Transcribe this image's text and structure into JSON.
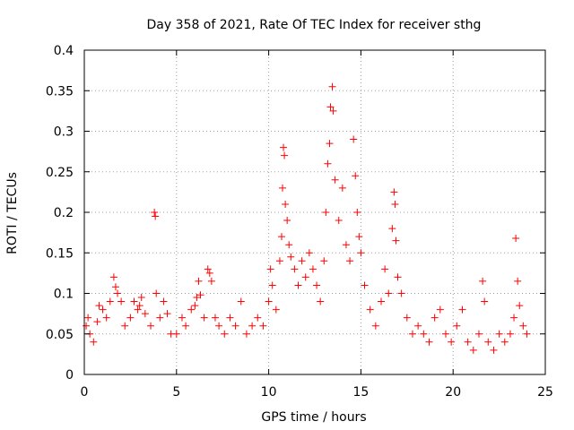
{
  "chart_data": {
    "type": "scatter",
    "title": "Day 358 of 2021, Rate Of TEC Index for receiver sthg",
    "xlabel": "GPS time / hours",
    "ylabel": "ROTI / TECUs",
    "xlim": [
      0,
      25
    ],
    "ylim": [
      0,
      0.4
    ],
    "xticks": [
      0,
      5,
      10,
      15,
      20,
      25
    ],
    "yticks": [
      0,
      0.05,
      0.1,
      0.15,
      0.2,
      0.25,
      0.3,
      0.35,
      0.4
    ],
    "xtick_labels": [
      "0",
      "5",
      "10",
      "15",
      "20",
      "25"
    ],
    "ytick_labels": [
      "0",
      "0.05",
      "0.1",
      "0.15",
      "0.2",
      "0.25",
      "0.3",
      "0.35",
      "0.4"
    ],
    "grid": true,
    "marker": "+",
    "color": "#ff0000",
    "series": [
      {
        "name": "ROTI",
        "points": [
          [
            0.1,
            0.06
          ],
          [
            0.2,
            0.07
          ],
          [
            0.3,
            0.05
          ],
          [
            0.5,
            0.04
          ],
          [
            0.7,
            0.065
          ],
          [
            0.8,
            0.085
          ],
          [
            1.0,
            0.08
          ],
          [
            1.2,
            0.07
          ],
          [
            1.4,
            0.09
          ],
          [
            1.6,
            0.12
          ],
          [
            1.7,
            0.108
          ],
          [
            1.8,
            0.1
          ],
          [
            2.0,
            0.09
          ],
          [
            2.2,
            0.06
          ],
          [
            2.5,
            0.07
          ],
          [
            2.7,
            0.09
          ],
          [
            2.9,
            0.08
          ],
          [
            3.0,
            0.085
          ],
          [
            3.1,
            0.095
          ],
          [
            3.3,
            0.075
          ],
          [
            3.6,
            0.06
          ],
          [
            3.8,
            0.2
          ],
          [
            3.85,
            0.195
          ],
          [
            3.9,
            0.1
          ],
          [
            4.1,
            0.07
          ],
          [
            4.3,
            0.09
          ],
          [
            4.5,
            0.075
          ],
          [
            4.7,
            0.05
          ],
          [
            5.0,
            0.05
          ],
          [
            5.3,
            0.07
          ],
          [
            5.5,
            0.06
          ],
          [
            5.8,
            0.08
          ],
          [
            6.0,
            0.085
          ],
          [
            6.1,
            0.095
          ],
          [
            6.2,
            0.115
          ],
          [
            6.3,
            0.098
          ],
          [
            6.5,
            0.07
          ],
          [
            6.7,
            0.13
          ],
          [
            6.8,
            0.125
          ],
          [
            6.9,
            0.115
          ],
          [
            7.1,
            0.07
          ],
          [
            7.3,
            0.06
          ],
          [
            7.6,
            0.05
          ],
          [
            7.9,
            0.07
          ],
          [
            8.2,
            0.06
          ],
          [
            8.5,
            0.09
          ],
          [
            8.8,
            0.05
          ],
          [
            9.1,
            0.06
          ],
          [
            9.4,
            0.07
          ],
          [
            9.7,
            0.06
          ],
          [
            10.0,
            0.09
          ],
          [
            10.1,
            0.13
          ],
          [
            10.2,
            0.11
          ],
          [
            10.4,
            0.08
          ],
          [
            10.6,
            0.14
          ],
          [
            10.7,
            0.17
          ],
          [
            10.75,
            0.23
          ],
          [
            10.8,
            0.28
          ],
          [
            10.85,
            0.27
          ],
          [
            10.9,
            0.21
          ],
          [
            11.0,
            0.19
          ],
          [
            11.1,
            0.16
          ],
          [
            11.2,
            0.145
          ],
          [
            11.4,
            0.13
          ],
          [
            11.6,
            0.11
          ],
          [
            11.8,
            0.14
          ],
          [
            12.0,
            0.12
          ],
          [
            12.2,
            0.15
          ],
          [
            12.4,
            0.13
          ],
          [
            12.6,
            0.11
          ],
          [
            12.8,
            0.09
          ],
          [
            13.0,
            0.14
          ],
          [
            13.1,
            0.2
          ],
          [
            13.2,
            0.26
          ],
          [
            13.3,
            0.285
          ],
          [
            13.35,
            0.33
          ],
          [
            13.45,
            0.355
          ],
          [
            13.5,
            0.325
          ],
          [
            13.6,
            0.24
          ],
          [
            13.8,
            0.19
          ],
          [
            14.0,
            0.23
          ],
          [
            14.2,
            0.16
          ],
          [
            14.4,
            0.14
          ],
          [
            14.6,
            0.29
          ],
          [
            14.7,
            0.245
          ],
          [
            14.8,
            0.2
          ],
          [
            14.9,
            0.17
          ],
          [
            15.0,
            0.15
          ],
          [
            15.2,
            0.11
          ],
          [
            15.5,
            0.08
          ],
          [
            15.8,
            0.06
          ],
          [
            16.1,
            0.09
          ],
          [
            16.3,
            0.13
          ],
          [
            16.5,
            0.1
          ],
          [
            16.7,
            0.18
          ],
          [
            16.8,
            0.225
          ],
          [
            16.85,
            0.21
          ],
          [
            16.9,
            0.165
          ],
          [
            17.0,
            0.12
          ],
          [
            17.2,
            0.1
          ],
          [
            17.5,
            0.07
          ],
          [
            17.8,
            0.05
          ],
          [
            18.1,
            0.06
          ],
          [
            18.4,
            0.05
          ],
          [
            18.7,
            0.04
          ],
          [
            19.0,
            0.07
          ],
          [
            19.3,
            0.08
          ],
          [
            19.6,
            0.05
          ],
          [
            19.9,
            0.04
          ],
          [
            20.2,
            0.06
          ],
          [
            20.5,
            0.08
          ],
          [
            20.8,
            0.04
          ],
          [
            21.1,
            0.03
          ],
          [
            21.4,
            0.05
          ],
          [
            21.6,
            0.115
          ],
          [
            21.7,
            0.09
          ],
          [
            21.9,
            0.04
          ],
          [
            22.2,
            0.03
          ],
          [
            22.5,
            0.05
          ],
          [
            22.8,
            0.04
          ],
          [
            23.1,
            0.05
          ],
          [
            23.3,
            0.07
          ],
          [
            23.4,
            0.168
          ],
          [
            23.5,
            0.115
          ],
          [
            23.6,
            0.085
          ],
          [
            23.8,
            0.06
          ],
          [
            24.0,
            0.05
          ]
        ]
      }
    ]
  }
}
